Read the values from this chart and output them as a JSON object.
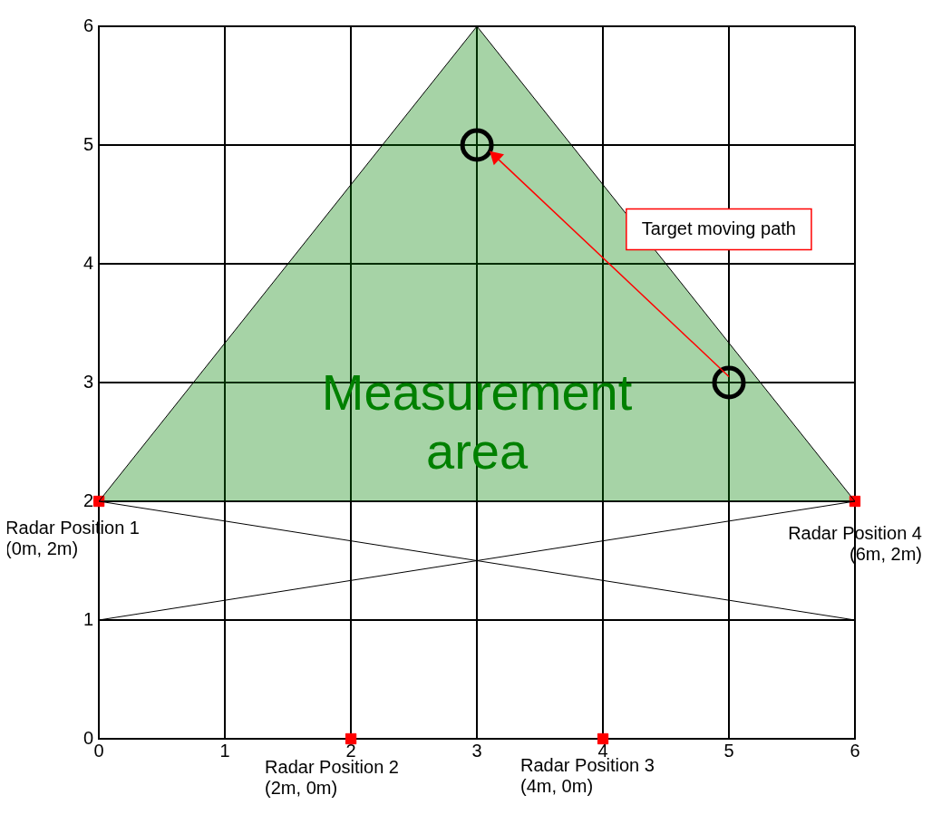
{
  "chart_data": {
    "type": "scatter",
    "xlim": [
      0,
      6
    ],
    "ylim": [
      0,
      6
    ],
    "xticks": [
      0,
      1,
      2,
      3,
      4,
      5,
      6
    ],
    "yticks": [
      0,
      1,
      2,
      3,
      4,
      5,
      6
    ],
    "grid": true,
    "legend": false,
    "series": [
      {
        "type": "area",
        "color": "#008000",
        "x": [
          0,
          3,
          6,
          0
        ],
        "values": [
          2,
          6,
          2,
          2
        ],
        "marker": "none"
      },
      {
        "type": "line",
        "color": "#000000",
        "x": [
          0,
          6
        ],
        "values": [
          2,
          1
        ],
        "marker": "none"
      },
      {
        "type": "line",
        "color": "#000000",
        "x": [
          0,
          6
        ],
        "values": [
          1,
          2
        ],
        "marker": "none"
      },
      {
        "type": "line",
        "color": "#ff0000",
        "x": [
          5,
          3.15
        ],
        "values": [
          3.05,
          4.9
        ],
        "marker": "triangle"
      },
      {
        "type": "scatter",
        "color": "#000000",
        "x": [
          3,
          5
        ],
        "values": [
          5,
          3
        ],
        "marker": "circle"
      },
      {
        "type": "scatter",
        "color": "#ff0000",
        "x": [
          0,
          2,
          4,
          6
        ],
        "values": [
          2,
          0,
          0,
          2
        ],
        "marker": "square"
      }
    ],
    "annotations": [
      "Measurement\narea",
      "Target moving path",
      {
        "text": "Radar Position 1\n(0m, 2m)",
        "x": 0,
        "y": 2
      },
      {
        "text": "Radar Position 2\n(2m, 0m)",
        "x": 2,
        "y": 0
      },
      {
        "text": "Radar Position 3\n(4m, 0m)",
        "x": 4,
        "y": 0
      },
      {
        "text": "Radar Position 4\n(6m, 2m)",
        "x": 6,
        "y": 2
      }
    ]
  }
}
